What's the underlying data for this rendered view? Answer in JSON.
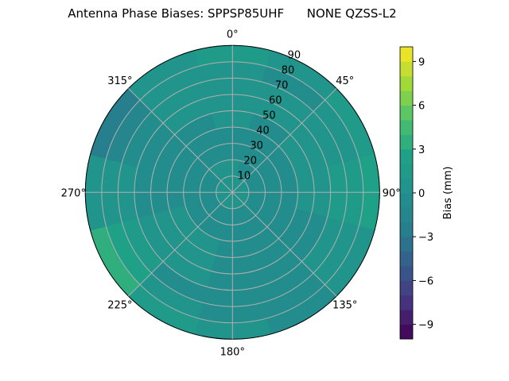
{
  "chart_data": {
    "type": "heatmap",
    "projection": "polar",
    "title": "Antenna Phase Biases: SPPSP85UHF      NONE QZSS-L2",
    "colorbar_label": "Bias (mm)",
    "colormap": "viridis",
    "clim": [
      -10,
      10
    ],
    "level_step": 1,
    "colorbar_ticks": [
      "−9",
      "−6",
      "−3",
      "0",
      "3",
      "6",
      "9"
    ],
    "colorbar_tick_values": [
      -9,
      -6,
      -3,
      0,
      3,
      6,
      9
    ],
    "azimuth_ticks": [
      "0°",
      "45°",
      "90°",
      "135°",
      "180°",
      "225°",
      "270°",
      "315°"
    ],
    "zenith_ticks": [
      "10",
      "20",
      "30",
      "40",
      "50",
      "60",
      "70",
      "80",
      "90"
    ],
    "azimuth_direction": "clockwise",
    "azimuth_zero": "top",
    "grid": true,
    "azimuth_centers": [
      0,
      30,
      60,
      90,
      120,
      150,
      180,
      210,
      240,
      270,
      300,
      330
    ],
    "zenith_bands": [
      [
        0,
        10
      ],
      [
        10,
        20
      ],
      [
        20,
        30
      ],
      [
        30,
        40
      ],
      [
        40,
        50
      ],
      [
        50,
        60
      ],
      [
        60,
        70
      ],
      [
        70,
        80
      ],
      [
        80,
        90
      ]
    ],
    "values": [
      [
        0,
        0,
        0,
        0,
        0,
        0,
        0,
        0,
        0,
        0,
        0,
        0
      ],
      [
        0,
        -1,
        -1,
        -1,
        -1,
        -1,
        -1,
        -1,
        -1,
        -1,
        -1,
        0
      ],
      [
        -1,
        -1,
        -1,
        -1,
        -1,
        -1,
        -1,
        -1,
        -1,
        -1,
        -1,
        -1
      ],
      [
        -1,
        -1,
        -1,
        -1,
        -1,
        -1,
        -1,
        0,
        0,
        -1,
        -1,
        -1
      ],
      [
        0,
        -1,
        0,
        0,
        -1,
        -1,
        -1,
        0,
        0,
        -1,
        -1,
        -1
      ],
      [
        0,
        0,
        0,
        0,
        -1,
        -1,
        -1,
        0,
        0,
        -1,
        -1,
        0
      ],
      [
        0,
        0,
        0,
        1,
        0,
        -1,
        -1,
        -1,
        1,
        0,
        -1,
        0
      ],
      [
        0,
        -1,
        0,
        1,
        0,
        -1,
        -1,
        0,
        2,
        0,
        -2,
        0
      ],
      [
        1,
        0,
        1,
        2,
        0,
        -1,
        0,
        1,
        3,
        0,
        -3,
        0
      ]
    ]
  }
}
